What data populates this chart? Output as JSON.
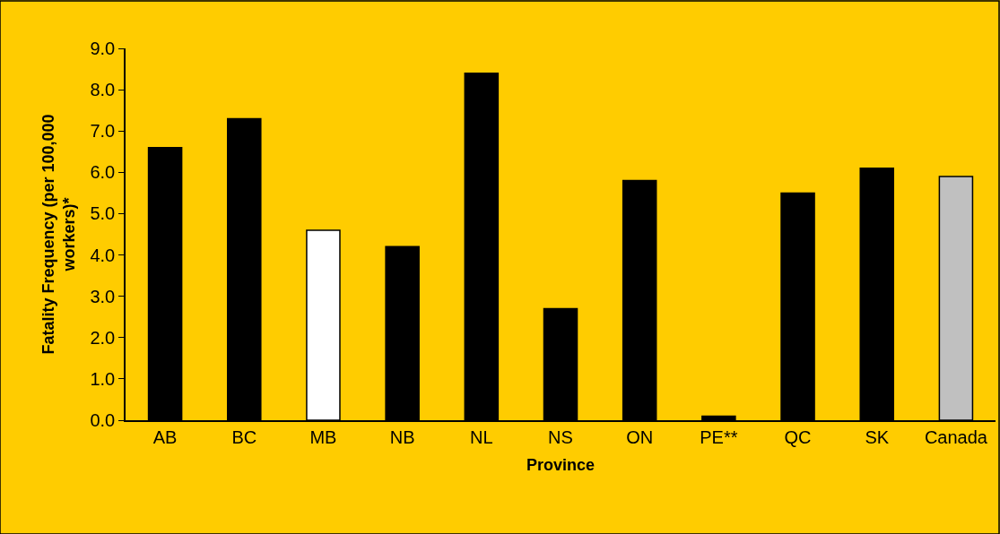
{
  "chart_data": {
    "type": "bar",
    "xlabel": "Province",
    "ylabel": "Fatality Frequency (per 100,000 workers)*",
    "categories": [
      "AB",
      "BC",
      "MB",
      "NB",
      "NL",
      "NS",
      "ON",
      "PE**",
      "QC",
      "SK",
      "Canada"
    ],
    "values": [
      6.6,
      7.3,
      4.6,
      4.2,
      8.4,
      2.7,
      5.8,
      0.1,
      5.5,
      6.1,
      5.9
    ],
    "colors": [
      "#000000",
      "#000000",
      "#ffffff",
      "#000000",
      "#000000",
      "#000000",
      "#000000",
      "#000000",
      "#000000",
      "#000000",
      "#c0c0c0"
    ],
    "ylim": [
      0,
      9
    ],
    "yticks": [
      {
        "value": 0,
        "label": "0.0"
      },
      {
        "value": 1,
        "label": "1.0"
      },
      {
        "value": 2,
        "label": "2.0"
      },
      {
        "value": 3,
        "label": "3.0"
      },
      {
        "value": 4,
        "label": "4.0"
      },
      {
        "value": 5,
        "label": "5.0"
      },
      {
        "value": 6,
        "label": "6.0"
      },
      {
        "value": 7,
        "label": "7.0"
      },
      {
        "value": 8,
        "label": "8.0"
      },
      {
        "value": 9,
        "label": "9.0"
      }
    ],
    "grid": false
  }
}
